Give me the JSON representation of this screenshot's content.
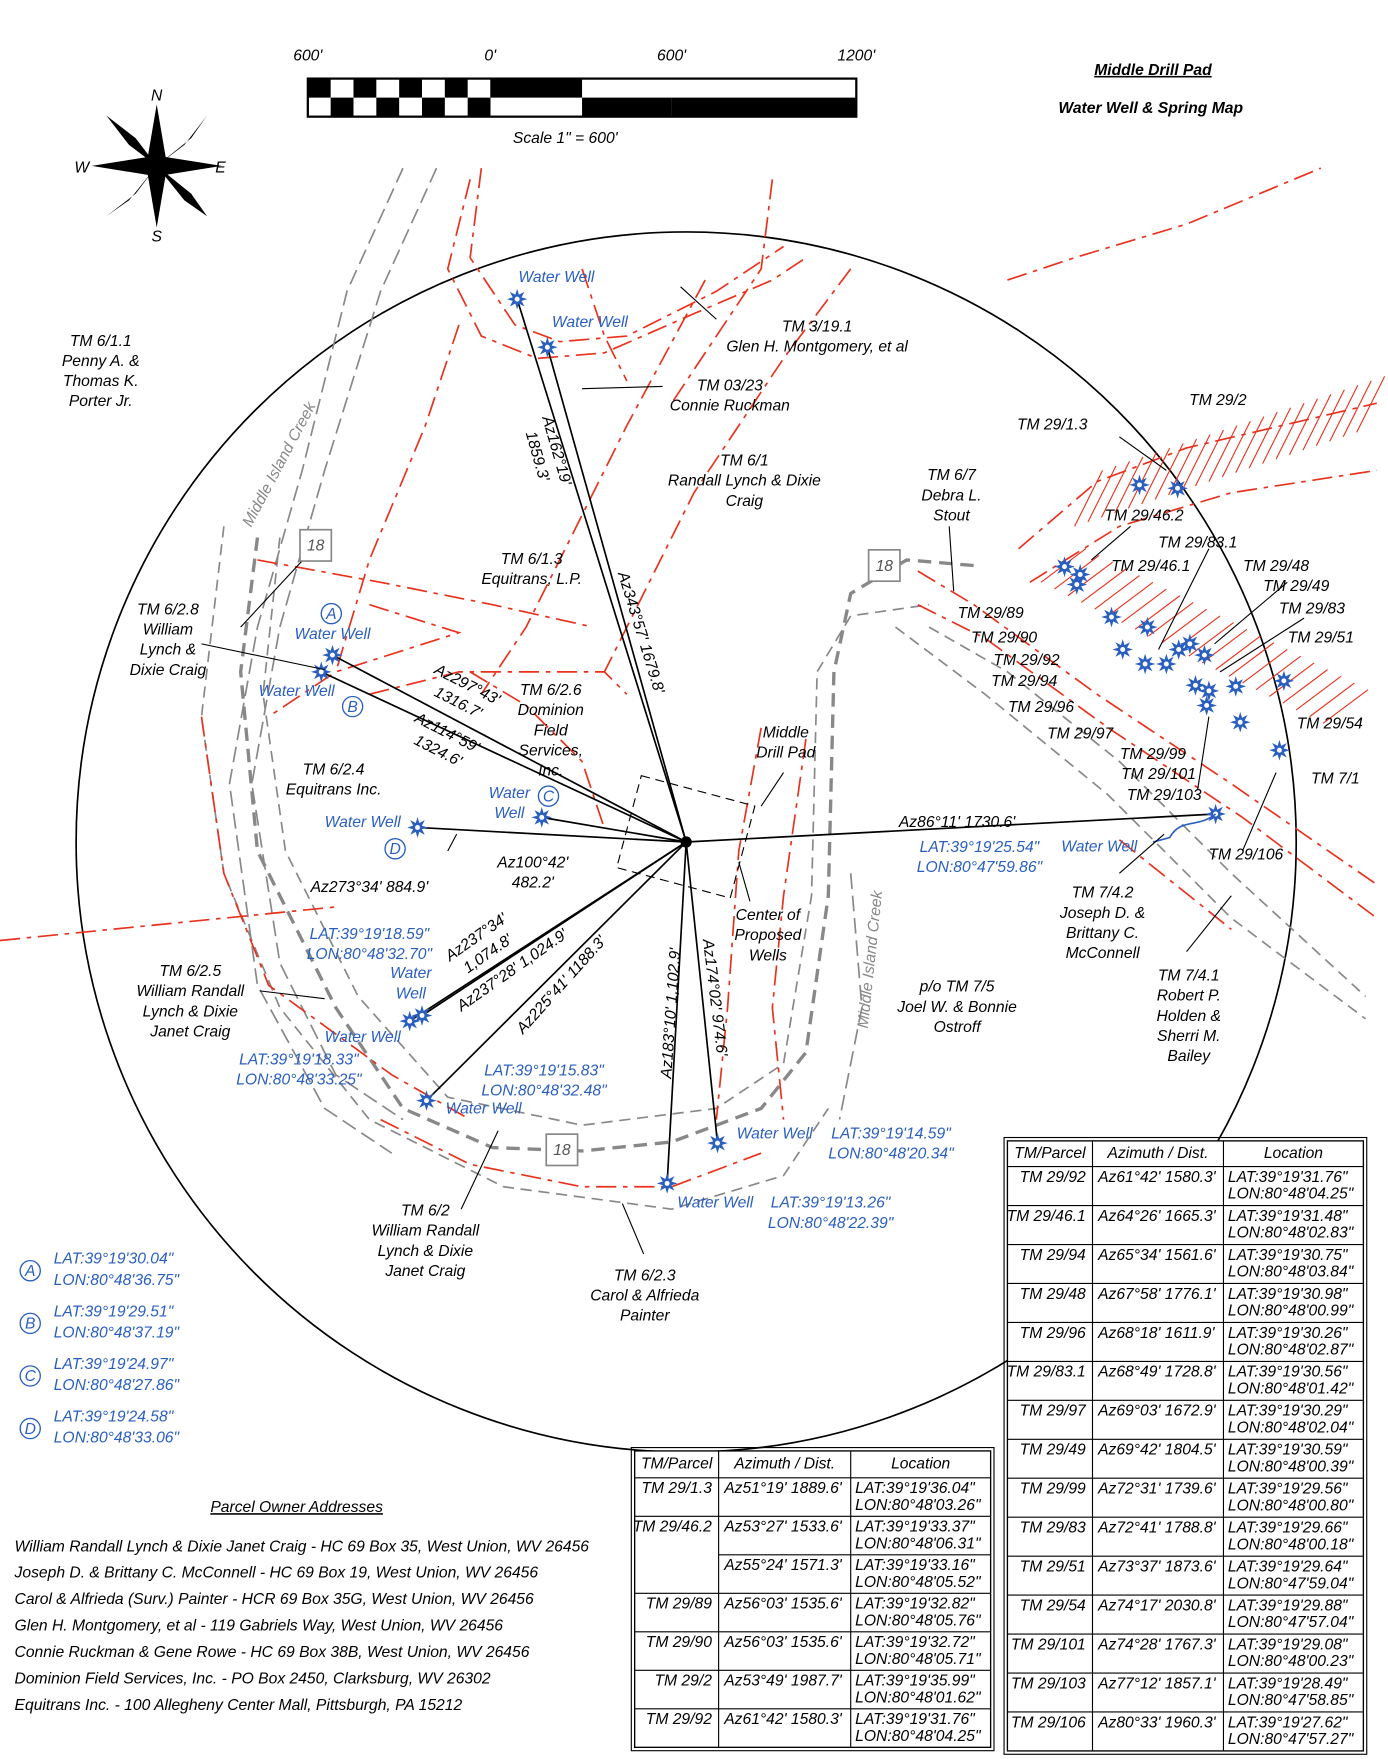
{
  "title": [
    "Middle Drill Pad",
    "Water Well & Spring Map"
  ],
  "scale": {
    "ticks": [
      "600'",
      "0'",
      "600'",
      "1200'"
    ],
    "label": "Scale 1\" = 600'"
  },
  "compass": [
    "N",
    "E",
    "S",
    "W"
  ],
  "parcel_labels": [
    [
      "TM 6/1.1",
      "Penny A. &",
      "Thomas K.",
      "Porter Jr."
    ],
    [
      "TM 3/19.1",
      "Glen H. Montgomery, et al"
    ],
    [
      "TM 03/23",
      "Connie Ruckman"
    ],
    [
      "TM 6/1",
      "Randall Lynch & Dixie",
      "Craig"
    ],
    [
      "TM 6/1.3",
      "Equitrans, L.P."
    ],
    [
      "TM 6/7",
      "Debra L.",
      "Stout"
    ],
    [
      "TM 29/2"
    ],
    [
      "TM 29/1.3"
    ],
    [
      "TM 29/46.2"
    ],
    [
      "TM 29/83.1"
    ],
    [
      "TM 29/46.1"
    ],
    [
      "TM 29/48"
    ],
    [
      "TM 29/49"
    ],
    [
      "TM 29/83"
    ],
    [
      "TM 29/51"
    ],
    [
      "TM 29/89"
    ],
    [
      "TM 29/90"
    ],
    [
      "TM 29/92"
    ],
    [
      "TM 29/94"
    ],
    [
      "TM 29/96"
    ],
    [
      "TM 29/97"
    ],
    [
      "TM 29/99"
    ],
    [
      "TM 29/101"
    ],
    [
      "TM 29/103"
    ],
    [
      "TM 29/54"
    ],
    [
      "TM 7/1"
    ],
    [
      "TM 29/106"
    ],
    [
      "TM 7/4.2",
      "Joseph D. &",
      "Brittany C.",
      "McConnell"
    ],
    [
      "TM 7/4.1",
      "Robert P.",
      "Holden &",
      "Sherri M.",
      "Bailey"
    ],
    [
      "p/o TM 7/5",
      "Joel W. & Bonnie",
      "Ostroff"
    ],
    [
      "Center of",
      "Proposed",
      "Wells"
    ],
    [
      "Middle",
      "Drill Pad"
    ],
    [
      "TM 6/2.8",
      "William",
      "Lynch &",
      "Dixie Craig"
    ],
    [
      "TM 6/2.6",
      "Dominion",
      "Field",
      "Services,",
      "Inc."
    ],
    [
      "TM 6/2.4",
      "Equitrans Inc."
    ],
    [
      "TM 6/2.5",
      "William Randall",
      "Lynch & Dixie",
      "Janet Craig"
    ],
    [
      "TM 6/2",
      "William Randall",
      "Lynch & Dixie",
      "Janet Craig"
    ],
    [
      "TM 6/2.3",
      "Carol & Alfrieda",
      "Painter"
    ]
  ],
  "azimuth_labels": [
    [
      "Az162°19'",
      "1859.3'"
    ],
    [
      "Az343°57'  1679.8'"
    ],
    [
      "Az297°43'",
      "1316.7'"
    ],
    [
      "Az114°59'",
      "1324.6'"
    ],
    [
      "Az273°34'  884.9'"
    ],
    [
      "Az100°42'",
      "482.2'"
    ],
    [
      "Az86°11'  1730.6'"
    ],
    [
      "Az237°34'",
      "1,074.8'"
    ],
    [
      "Az237°28'  1,024.9'"
    ],
    [
      "Az225°41'  1188.3'"
    ],
    [
      "Az183°10'  1,102.9'"
    ],
    [
      "Az174°02'  974.6'"
    ]
  ],
  "well_labels": [
    [
      "Water Well"
    ],
    [
      "Water Well"
    ],
    [
      "Water Well"
    ],
    [
      "Water Well"
    ],
    [
      "Water Well"
    ],
    [
      "Water",
      "Well"
    ],
    [
      "Water Well"
    ],
    [
      "Water",
      "Well"
    ],
    [
      "Water Well"
    ],
    [
      "Water Well"
    ],
    [
      "Water Well"
    ],
    [
      "Water Well"
    ]
  ],
  "well_letters": [
    "A",
    "B",
    "C",
    "D"
  ],
  "coordinate_labels": [
    [
      "LAT:39°19'25.54\"",
      "LON:80°47'59.86\""
    ],
    [
      "LAT:39°19'18.59\"",
      "LON:80°48'32.70\""
    ],
    [
      "LAT:39°19'18.33\"",
      "LON:80°48'33.25\""
    ],
    [
      "LAT:39°19'15.83\"",
      "LON:80°48'32.48\""
    ],
    [
      "LAT:39°19'14.59\"",
      "LON:80°48'20.34\""
    ],
    [
      "LAT:39°19'13.26\"",
      "LON:80°48'22.39\""
    ]
  ],
  "creek_labels": [
    "Middle Island Creek",
    "Middle Island Creek"
  ],
  "route_labels": [
    "18",
    "18",
    "18"
  ],
  "legend": [
    {
      "letter": "A",
      "lat": "LAT:39°19'30.04\"",
      "lon": "LON:80°48'36.75\""
    },
    {
      "letter": "B",
      "lat": "LAT:39°19'29.51\"",
      "lon": "LON:80°48'37.19\""
    },
    {
      "letter": "C",
      "lat": "LAT:39°19'24.97\"",
      "lon": "LON:80°48'27.86\""
    },
    {
      "letter": "D",
      "lat": "LAT:39°19'24.58\"",
      "lon": "LON:80°48'33.06\""
    }
  ],
  "addresses": {
    "heading": "Parcel Owner Addresses",
    "lines": [
      "William Randall Lynch & Dixie Janet Craig - HC 69 Box 35, West Union, WV 26456",
      "Joseph D. & Brittany C. McConnell - HC 69 Box 19, West Union, WV 26456",
      "Carol & Alfrieda (Surv.) Painter - HCR 69 Box 35G, West Union, WV 26456",
      "Glen H. Montgomery, et al - 119 Gabriels Way, West Union, WV 26456",
      "Connie Ruckman & Gene Rowe - HC 69 Box 38B, West Union, WV 26456",
      "Dominion Field Services, Inc. - PO Box 2450, Clarksburg, WV 26302",
      "Equitrans Inc. - 100 Allegheny Center Mall, Pittsburgh, PA 15212"
    ]
  },
  "tables": [
    {
      "header": [
        "TM/Parcel",
        "Azimuth / Dist.",
        "Location"
      ],
      "rows": [
        {
          "parcel": "TM 29/1.3",
          "azimuth": "Az51°19'  1889.6'",
          "location": [
            "LAT:39°19'36.04\"",
            "LON:80°48'03.26\""
          ]
        },
        {
          "parcel": "TM 29/46.2",
          "azimuth": "Az53°27'  1533.6'",
          "location": [
            "LAT:39°19'33.37\"",
            "LON:80°48'06.31\""
          ]
        },
        {
          "parcel": null,
          "azimuth": "Az55°24'  1571.3'",
          "location": [
            "LAT:39°19'33.16\"",
            "LON:80°48'05.52\""
          ]
        },
        {
          "parcel": "TM 29/89",
          "azimuth": "Az56°03'  1535.6'",
          "location": [
            "LAT:39°19'32.82\"",
            "LON:80°48'05.76\""
          ]
        },
        {
          "parcel": "TM 29/90",
          "azimuth": "Az56°03'  1535.6'",
          "location": [
            "LAT:39°19'32.72\"",
            "LON:80°48'05.71\""
          ]
        },
        {
          "parcel": "TM 29/2",
          "azimuth": "Az53°49'  1987.7'",
          "location": [
            "LAT:39°19'35.99\"",
            "LON:80°48'01.62\""
          ]
        },
        {
          "parcel": "TM 29/92",
          "azimuth": "Az61°42'  1580.3'",
          "location": [
            "LAT:39°19'31.76\"",
            "LON:80°48'04.25\""
          ]
        }
      ]
    },
    {
      "header": [
        "TM/Parcel",
        "Azimuth / Dist.",
        "Location"
      ],
      "rows": [
        {
          "parcel": "TM 29/92",
          "azimuth": "Az61°42'  1580.3'",
          "location": [
            "LAT:39°19'31.76\"",
            "LON:80°48'04.25\""
          ]
        },
        {
          "parcel": "TM 29/46.1",
          "azimuth": "Az64°26'  1665.3'",
          "location": [
            "LAT:39°19'31.48\"",
            "LON:80°48'02.83\""
          ]
        },
        {
          "parcel": "TM 29/94",
          "azimuth": "Az65°34'  1561.6'",
          "location": [
            "LAT:39°19'30.75\"",
            "LON:80°48'03.84\""
          ]
        },
        {
          "parcel": "TM 29/48",
          "azimuth": "Az67°58'  1776.1'",
          "location": [
            "LAT:39°19'30.98\"",
            "LON:80°48'00.99\""
          ]
        },
        {
          "parcel": "TM 29/96",
          "azimuth": "Az68°18'  1611.9'",
          "location": [
            "LAT:39°19'30.26\"",
            "LON:80°48'02.87\""
          ]
        },
        {
          "parcel": "TM 29/83.1",
          "azimuth": "Az68°49'  1728.8'",
          "location": [
            "LAT:39°19'30.56\"",
            "LON:80°48'01.42\""
          ]
        },
        {
          "parcel": "TM 29/97",
          "azimuth": "Az69°03'  1672.9'",
          "location": [
            "LAT:39°19'30.29\"",
            "LON:80°48'02.04\""
          ]
        },
        {
          "parcel": "TM 29/49",
          "azimuth": "Az69°42'  1804.5'",
          "location": [
            "LAT:39°19'30.59\"",
            "LON:80°48'00.39\""
          ]
        },
        {
          "parcel": "TM 29/99",
          "azimuth": "Az72°31'  1739.6'",
          "location": [
            "LAT:39°19'29.56\"",
            "LON:80°48'00.80\""
          ]
        },
        {
          "parcel": "TM 29/83",
          "azimuth": "Az72°41'  1788.8'",
          "location": [
            "LAT:39°19'29.66\"",
            "LON:80°48'00.18\""
          ]
        },
        {
          "parcel": "TM 29/51",
          "azimuth": "Az73°37'  1873.6'",
          "location": [
            "LAT:39°19'29.64\"",
            "LON:80°47'59.04\""
          ]
        },
        {
          "parcel": "TM 29/54",
          "azimuth": "Az74°17'  2030.8'",
          "location": [
            "LAT:39°19'29.88\"",
            "LON:80°47'57.04\""
          ]
        },
        {
          "parcel": "TM 29/101",
          "azimuth": "Az74°28'  1767.3'",
          "location": [
            "LAT:39°19'29.08\"",
            "LON:80°48'00.23\""
          ]
        },
        {
          "parcel": "TM 29/103",
          "azimuth": "Az77°12'  1857.1'",
          "location": [
            "LAT:39°19'28.49\"",
            "LON:80°47'58.85\""
          ]
        },
        {
          "parcel": "TM 29/106",
          "azimuth": "Az80°33'  1960.3'",
          "location": [
            "LAT:39°19'27.62\"",
            "LON:80°47'57.27\""
          ]
        }
      ]
    }
  ]
}
